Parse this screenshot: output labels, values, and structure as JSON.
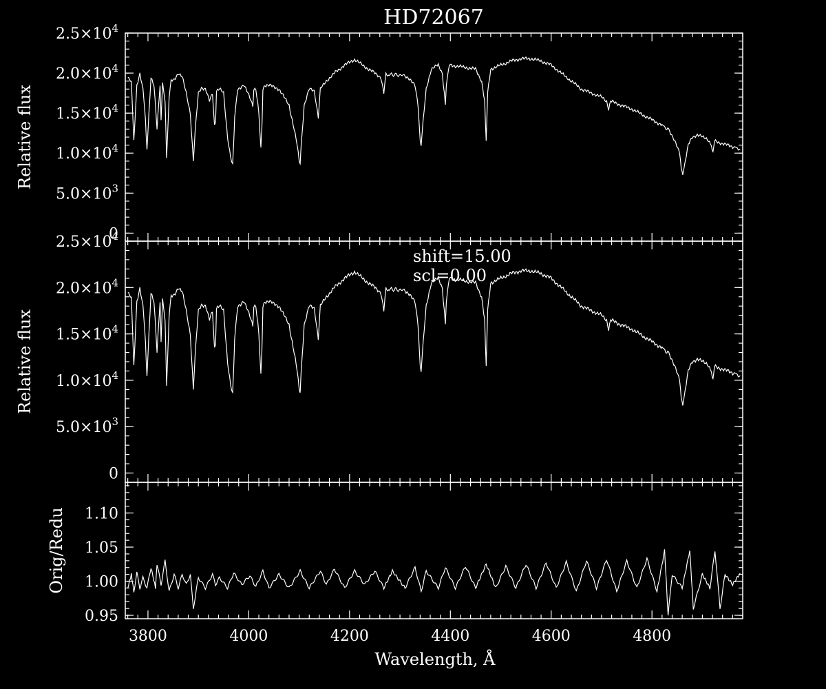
{
  "chart_data": [
    {
      "type": "line",
      "title": "HD72067",
      "xlabel": "",
      "ylabel": "Relative flux",
      "xlim": [
        3755,
        4980
      ],
      "ylim": [
        -1000,
        25000
      ],
      "ytick_labels": [
        "0",
        "5.0×10",
        "1.0×10",
        "1.5×10",
        "2.0×10",
        "2.5×10"
      ],
      "ytick_exponents": [
        "",
        "3",
        "4",
        "4",
        "4",
        "4"
      ],
      "series": [
        {
          "x": [
            3760,
            3767,
            3772,
            3778,
            3784,
            3790,
            3795,
            3798,
            3802,
            3806,
            3812,
            3818,
            3824,
            3826,
            3829,
            3834,
            3837,
            3842,
            3846,
            3852,
            3860,
            3868,
            3876,
            3884,
            3890,
            3894,
            3900,
            3906,
            3914,
            3922,
            3928,
            3932,
            3934,
            3936,
            3942,
            3950,
            3958,
            3964,
            3968,
            3970,
            3972,
            3978,
            3990,
            4002,
            4008,
            4010,
            4014,
            4020,
            4024,
            4026,
            4028,
            4032,
            4040,
            4060,
            4080,
            4090,
            4096,
            4100,
            4102,
            4104,
            4110,
            4120,
            4130,
            4138,
            4142,
            4148,
            4154,
            4170,
            4190,
            4210,
            4230,
            4250,
            4262,
            4268,
            4272,
            4285,
            4310,
            4330,
            4336,
            4340,
            4342,
            4346,
            4352,
            4362,
            4376,
            4384,
            4388,
            4390,
            4392,
            4398,
            4420,
            4450,
            4462,
            4468,
            4471,
            4474,
            4480,
            4500,
            4520,
            4540,
            4560,
            4580,
            4600,
            4620,
            4640,
            4660,
            4680,
            4700,
            4710,
            4714,
            4718,
            4730,
            4760,
            4790,
            4820,
            4835,
            4845,
            4855,
            4858,
            4861,
            4866,
            4872,
            4880,
            4890,
            4900,
            4910,
            4918,
            4921,
            4924,
            4940,
            4960,
            4975
          ],
          "y": [
            19500,
            19000,
            11500,
            18500,
            20000,
            18000,
            14000,
            10500,
            15000,
            19500,
            18500,
            13000,
            18500,
            14000,
            19000,
            16500,
            9500,
            17000,
            19000,
            19200,
            20000,
            19500,
            17500,
            15000,
            9000,
            13000,
            17500,
            18200,
            18000,
            16500,
            17500,
            13500,
            14000,
            17800,
            18000,
            17500,
            12000,
            9500,
            8500,
            11000,
            14500,
            18000,
            18500,
            17000,
            16000,
            18000,
            18000,
            15000,
            10500,
            13000,
            18000,
            18500,
            18500,
            18000,
            16000,
            13000,
            11000,
            9000,
            8800,
            11000,
            16000,
            18000,
            17800,
            14500,
            18000,
            18500,
            19000,
            20000,
            21000,
            21700,
            20800,
            20000,
            19500,
            17500,
            19800,
            19800,
            19700,
            18500,
            16000,
            11500,
            11000,
            14000,
            18000,
            20500,
            21000,
            20000,
            17500,
            16000,
            18500,
            21000,
            20800,
            20500,
            19000,
            16500,
            11500,
            17500,
            20500,
            21000,
            21500,
            21800,
            21800,
            21500,
            21000,
            20000,
            19000,
            18000,
            17500,
            17000,
            16500,
            15500,
            16500,
            16200,
            15500,
            14500,
            13500,
            12800,
            11500,
            10000,
            8000,
            7500,
            9000,
            11000,
            12000,
            12300,
            12000,
            11800,
            11000,
            10000,
            11500,
            11200,
            10800,
            10500
          ]
        }
      ]
    },
    {
      "type": "line",
      "title": "",
      "xlabel": "",
      "ylabel": "Relative flux",
      "xlim": [
        3755,
        4980
      ],
      "ylim": [
        -1000,
        25000
      ],
      "ytick_labels": [
        "0",
        "5.0×10",
        "1.0×10",
        "1.5×10",
        "2.0×10",
        "2.5×10"
      ],
      "ytick_exponents": [
        "",
        "3",
        "4",
        "4",
        "4",
        "4"
      ],
      "annotations": [
        "shift=15.00",
        "scl=0.00"
      ],
      "series": [
        {
          "x": [
            3760,
            3767,
            3772,
            3778,
            3784,
            3790,
            3795,
            3798,
            3802,
            3806,
            3812,
            3818,
            3824,
            3826,
            3829,
            3834,
            3837,
            3842,
            3846,
            3852,
            3860,
            3868,
            3876,
            3884,
            3890,
            3894,
            3900,
            3906,
            3914,
            3922,
            3928,
            3932,
            3934,
            3936,
            3942,
            3950,
            3958,
            3964,
            3968,
            3970,
            3972,
            3978,
            3990,
            4002,
            4008,
            4010,
            4014,
            4020,
            4024,
            4026,
            4028,
            4032,
            4040,
            4060,
            4080,
            4090,
            4096,
            4100,
            4102,
            4104,
            4110,
            4120,
            4130,
            4138,
            4142,
            4148,
            4154,
            4170,
            4190,
            4210,
            4230,
            4250,
            4262,
            4268,
            4272,
            4285,
            4310,
            4330,
            4336,
            4340,
            4342,
            4346,
            4352,
            4362,
            4376,
            4384,
            4388,
            4390,
            4392,
            4398,
            4420,
            4450,
            4462,
            4468,
            4471,
            4474,
            4480,
            4500,
            4520,
            4540,
            4560,
            4580,
            4600,
            4620,
            4640,
            4660,
            4680,
            4700,
            4710,
            4714,
            4718,
            4730,
            4760,
            4790,
            4820,
            4835,
            4845,
            4855,
            4858,
            4861,
            4866,
            4872,
            4880,
            4890,
            4900,
            4910,
            4918,
            4921,
            4924,
            4940,
            4960,
            4975
          ],
          "y": [
            19500,
            19000,
            11500,
            18500,
            20000,
            18000,
            14000,
            10500,
            15000,
            19500,
            18500,
            13000,
            18500,
            14000,
            19000,
            16500,
            9500,
            17000,
            19000,
            19200,
            20000,
            19500,
            17500,
            15000,
            9000,
            13000,
            17500,
            18200,
            18000,
            16500,
            17500,
            13500,
            14000,
            17800,
            18000,
            17500,
            12000,
            9500,
            8500,
            11000,
            14500,
            18000,
            18500,
            17000,
            16000,
            18000,
            18000,
            15000,
            10500,
            13000,
            18000,
            18500,
            18500,
            18000,
            16000,
            13000,
            11000,
            9000,
            8800,
            11000,
            16000,
            18000,
            17800,
            14500,
            18000,
            18500,
            19000,
            20000,
            21000,
            21700,
            20800,
            20000,
            19500,
            17500,
            19800,
            19800,
            19700,
            18500,
            16000,
            11500,
            11000,
            14000,
            18000,
            20500,
            21000,
            20000,
            17500,
            16000,
            18500,
            21000,
            20800,
            20500,
            19000,
            16500,
            11500,
            17500,
            20500,
            21000,
            21500,
            21800,
            21800,
            21500,
            21000,
            20000,
            19000,
            18000,
            17500,
            17000,
            16500,
            15500,
            16500,
            16200,
            15500,
            14500,
            13500,
            12800,
            11500,
            10000,
            8000,
            7500,
            9000,
            11000,
            12000,
            12300,
            12000,
            11800,
            11000,
            10000,
            11500,
            11200,
            10800,
            10500
          ]
        }
      ]
    },
    {
      "type": "line",
      "title": "",
      "xlabel": "Wavelength, Å",
      "ylabel": "Orig/Redu",
      "xlim": [
        3755,
        4980
      ],
      "ylim": [
        0.945,
        1.145
      ],
      "xtick_labels": [
        "3800",
        "4000",
        "4200",
        "4400",
        "4600",
        "4800"
      ],
      "xticks": [
        3800,
        4000,
        4200,
        4400,
        4600,
        4800
      ],
      "ytick_labels": [
        "0.95",
        "1.00",
        "1.05",
        "1.10"
      ],
      "yticks": [
        0.95,
        1.0,
        1.05,
        1.1
      ],
      "series": [
        {
          "x": [
            3760,
            3767,
            3772,
            3778,
            3784,
            3790,
            3798,
            3806,
            3815,
            3818,
            3826,
            3834,
            3842,
            3852,
            3860,
            3868,
            3876,
            3884,
            3890,
            3900,
            3914,
            3928,
            3934,
            3942,
            3958,
            3970,
            3986,
            4002,
            4014,
            4028,
            4040,
            4060,
            4080,
            4102,
            4120,
            4142,
            4154,
            4170,
            4190,
            4210,
            4230,
            4250,
            4268,
            4285,
            4310,
            4330,
            4342,
            4352,
            4376,
            4390,
            4410,
            4430,
            4450,
            4471,
            4490,
            4510,
            4530,
            4550,
            4570,
            4590,
            4610,
            4630,
            4650,
            4670,
            4690,
            4710,
            4730,
            4750,
            4770,
            4790,
            4810,
            4825,
            4832,
            4840,
            4860,
            4875,
            4882,
            4900,
            4915,
            4925,
            4935,
            4945,
            4960,
            4975
          ],
          "y": [
            0.99,
            1.01,
            0.985,
            1.012,
            0.99,
            1.005,
            0.99,
            1.02,
            0.99,
            1.025,
            0.995,
            1.03,
            0.985,
            1.01,
            0.99,
            1.01,
            0.995,
            1.01,
            0.96,
            1.005,
            0.99,
            1.01,
            0.995,
            1.005,
            0.99,
            1.012,
            0.995,
            1.008,
            0.992,
            1.015,
            0.99,
            1.01,
            0.99,
            1.015,
            0.99,
            1.015,
            0.995,
            1.018,
            0.99,
            1.015,
            0.995,
            1.015,
            0.99,
            1.015,
            0.99,
            1.02,
            0.985,
            1.015,
            0.99,
            1.02,
            0.99,
            1.022,
            0.99,
            1.025,
            0.99,
            1.022,
            0.99,
            1.025,
            0.99,
            1.027,
            0.99,
            1.028,
            0.985,
            1.03,
            0.99,
            1.032,
            0.985,
            1.03,
            0.99,
            1.033,
            0.985,
            1.045,
            0.95,
            1.01,
            0.99,
            1.045,
            0.96,
            1.01,
            0.99,
            1.045,
            0.96,
            1.01,
            0.995,
            1.012
          ]
        }
      ]
    }
  ]
}
